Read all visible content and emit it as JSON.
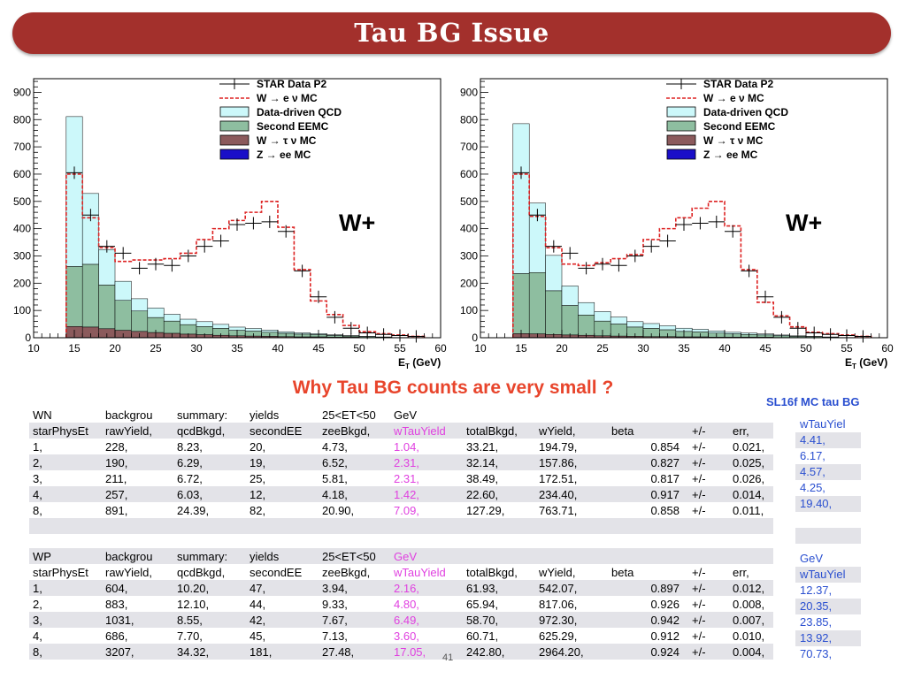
{
  "slide": {
    "title": "Tau BG Issue",
    "question": "Why Tau BG counts are very small ?",
    "page_number": "41"
  },
  "side": {
    "title": "SL16f MC tau BG"
  },
  "chart_data": [
    {
      "type": "bar",
      "title": "",
      "xlabel": "E",
      "xlabel_sub": "T",
      "xlabel_unit": " (GeV)",
      "annotation": "W+",
      "xlim": [
        10,
        60
      ],
      "ylim": [
        0,
        950
      ],
      "xticks": [
        "10",
        "15",
        "20",
        "25",
        "30",
        "35",
        "40",
        "45",
        "50",
        "55",
        "60"
      ],
      "yticks": [
        "0",
        "100",
        "200",
        "300",
        "400",
        "500",
        "600",
        "700",
        "800",
        "900"
      ],
      "bin_edges": [
        14,
        16,
        18,
        20,
        22,
        24,
        26,
        28,
        30,
        32,
        34,
        36,
        38,
        40,
        42,
        44,
        46,
        48,
        50,
        52,
        54,
        56,
        58
      ],
      "legend": [
        "STAR Data P2",
        "W → e ν MC",
        "Data-driven QCD",
        "Second EEMC",
        "W → τ ν MC",
        "Z → ee MC"
      ],
      "legend_position": "top-right",
      "data": [
        605,
        450,
        335,
        310,
        255,
        270,
        265,
        300,
        335,
        355,
        415,
        420,
        425,
        390,
        245,
        150,
        75,
        35,
        18,
        12,
        8,
        5
      ],
      "mc_total": [
        600,
        440,
        330,
        280,
        285,
        285,
        290,
        310,
        360,
        400,
        430,
        460,
        500,
        405,
        250,
        135,
        85,
        45,
        22,
        15,
        10,
        5
      ],
      "qcd": [
        550,
        260,
        130,
        70,
        45,
        35,
        25,
        20,
        18,
        15,
        12,
        10,
        8,
        6,
        5,
        4,
        3,
        2,
        1,
        1,
        0,
        0
      ],
      "eemc": [
        220,
        230,
        160,
        110,
        75,
        55,
        45,
        35,
        30,
        25,
        20,
        18,
        15,
        12,
        10,
        8,
        6,
        4,
        3,
        2,
        1,
        1
      ],
      "wtau": [
        40,
        38,
        32,
        26,
        22,
        18,
        15,
        12,
        10,
        8,
        6,
        5,
        4,
        3,
        2,
        2,
        1,
        1,
        0,
        0,
        0,
        0
      ],
      "zee": [
        1,
        1,
        1,
        1,
        1,
        1,
        1,
        1,
        1,
        1,
        1,
        1,
        1,
        1,
        1,
        1,
        1,
        1,
        1,
        0,
        0,
        0
      ]
    },
    {
      "type": "bar",
      "title": "",
      "xlabel": "E",
      "xlabel_sub": "T",
      "xlabel_unit": " (GeV)",
      "annotation": "W+",
      "xlim": [
        10,
        60
      ],
      "ylim": [
        0,
        950
      ],
      "xticks": [
        "10",
        "15",
        "20",
        "25",
        "30",
        "35",
        "40",
        "45",
        "50",
        "55",
        "60"
      ],
      "yticks": [
        "0",
        "100",
        "200",
        "300",
        "400",
        "500",
        "600",
        "700",
        "800",
        "900"
      ],
      "bin_edges": [
        14,
        16,
        18,
        20,
        22,
        24,
        26,
        28,
        30,
        32,
        34,
        36,
        38,
        40,
        42,
        44,
        46,
        48,
        50,
        52,
        54,
        56,
        58
      ],
      "legend": [
        "STAR Data P2",
        "W → e ν MC",
        "Data-driven QCD",
        "Second EEMC",
        "W → τ ν MC",
        "Z → ee MC"
      ],
      "legend_position": "top-right",
      "data": [
        605,
        450,
        335,
        310,
        255,
        270,
        265,
        300,
        335,
        355,
        415,
        420,
        425,
        390,
        245,
        150,
        75,
        35,
        18,
        12,
        8,
        5
      ],
      "mc_total": [
        600,
        445,
        330,
        270,
        265,
        275,
        290,
        305,
        360,
        400,
        440,
        475,
        500,
        410,
        250,
        130,
        80,
        40,
        20,
        15,
        10,
        5
      ],
      "qcd": [
        550,
        255,
        130,
        72,
        46,
        35,
        26,
        20,
        18,
        15,
        12,
        10,
        8,
        6,
        5,
        4,
        3,
        2,
        1,
        1,
        0,
        0
      ],
      "eemc": [
        220,
        225,
        160,
        108,
        74,
        54,
        44,
        34,
        30,
        25,
        20,
        18,
        15,
        12,
        10,
        8,
        6,
        4,
        3,
        2,
        1,
        1
      ],
      "wtau": [
        14,
        13,
        11,
        9,
        8,
        6,
        5,
        4,
        3,
        3,
        2,
        2,
        1,
        1,
        1,
        1,
        0,
        0,
        0,
        0,
        0,
        0
      ],
      "zee": [
        1,
        1,
        1,
        1,
        1,
        1,
        1,
        1,
        1,
        1,
        1,
        1,
        1,
        1,
        1,
        1,
        1,
        1,
        1,
        0,
        0,
        0
      ]
    }
  ],
  "colors": {
    "qcd": "#ccf8fa",
    "eemc": "#8ebea0",
    "wtau": "#8b5a5c",
    "zee": "#1a0fc8",
    "mc_line": "#dd2222",
    "data": "#000000"
  },
  "wn_table": {
    "rows": [
      {
        "shade": false,
        "cells": [
          "WN",
          "backgrou",
          "summary:",
          "yields",
          "25<ET<50",
          "GeV",
          "",
          "",
          "",
          "",
          ""
        ]
      },
      {
        "shade": true,
        "cells": [
          "starPhysEt",
          "rawYield,",
          "qcdBkgd,",
          "secondEE",
          "zeeBkgd,",
          "wTauYield",
          "totalBkgd,",
          "wYield,",
          "beta",
          "+/-",
          "err,"
        ]
      },
      {
        "shade": false,
        "cells": [
          "1,",
          "228,",
          "8.23,",
          "20,",
          "4.73,",
          "1.04,",
          "33.21,",
          "194.79,",
          "0.854",
          "+/-",
          "0.021,"
        ]
      },
      {
        "shade": true,
        "cells": [
          "2,",
          "190,",
          "6.29,",
          "19,",
          "6.52,",
          "2.31,",
          "32.14,",
          "157.86,",
          "0.827",
          "+/-",
          "0.025,"
        ]
      },
      {
        "shade": false,
        "cells": [
          "3,",
          "211,",
          "6.72,",
          "25,",
          "5.81,",
          "2.31,",
          "38.49,",
          "172.51,",
          "0.817",
          "+/-",
          "0.026,"
        ]
      },
      {
        "shade": true,
        "cells": [
          "4,",
          "257,",
          "6.03,",
          "12,",
          "4.18,",
          "1.42,",
          "22.60,",
          "234.40,",
          "0.917",
          "+/-",
          "0.014,"
        ]
      },
      {
        "shade": false,
        "cells": [
          "8,",
          "891,",
          "24.39,",
          "82,",
          "20.90,",
          "7.09,",
          "127.29,",
          "763.71,",
          "0.858",
          "+/-",
          "0.011,"
        ]
      },
      {
        "shade": true,
        "cells": [
          "",
          "",
          "",
          "",
          "",
          "",
          "",
          "",
          "",
          "",
          ""
        ]
      }
    ]
  },
  "wp_table": {
    "rows": [
      {
        "shade": true,
        "cells": [
          "WP",
          "backgrou",
          "summary:",
          "yields",
          "25<ET<50",
          "GeV",
          "",
          "",
          "",
          "",
          ""
        ]
      },
      {
        "shade": false,
        "cells": [
          "starPhysEt",
          "rawYield,",
          "qcdBkgd,",
          "secondEE",
          "zeeBkgd,",
          "wTauYield",
          "totalBkgd,",
          "wYield,",
          "beta",
          "+/-",
          "err,"
        ]
      },
      {
        "shade": true,
        "cells": [
          "1,",
          "604,",
          "10.20,",
          "47,",
          "3.94,",
          "2.16,",
          "61.93,",
          "542.07,",
          "0.897",
          "+/-",
          "0.012,"
        ]
      },
      {
        "shade": false,
        "cells": [
          "2,",
          "883,",
          "12.10,",
          "44,",
          "9.33,",
          "4.80,",
          "65.94,",
          "817.06,",
          "0.926",
          "+/-",
          "0.008,"
        ]
      },
      {
        "shade": true,
        "cells": [
          "3,",
          "1031,",
          "8.55,",
          "42,",
          "7.67,",
          "6.49,",
          "58.70,",
          "972.30,",
          "0.942",
          "+/-",
          "0.007,"
        ]
      },
      {
        "shade": false,
        "cells": [
          "4,",
          "686,",
          "7.70,",
          "45,",
          "7.13,",
          "3.60,",
          "60.71,",
          "625.29,",
          "0.912",
          "+/-",
          "0.010,"
        ]
      },
      {
        "shade": true,
        "cells": [
          "8,",
          "3207,",
          "34.32,",
          "181,",
          "27.48,",
          "17.05,",
          "242.80,",
          "2964.20,",
          "0.924",
          "+/-",
          "0.004,"
        ]
      }
    ]
  },
  "side_wn": {
    "rows": [
      {
        "shade": false,
        "text": "wTauYiel"
      },
      {
        "shade": true,
        "text": "4.41,"
      },
      {
        "shade": false,
        "text": "6.17,"
      },
      {
        "shade": true,
        "text": "4.57,"
      },
      {
        "shade": false,
        "text": "4.25,"
      },
      {
        "shade": true,
        "text": "19.40,"
      },
      {
        "shade": false,
        "text": ""
      },
      {
        "shade": true,
        "text": ""
      }
    ]
  },
  "side_wp": {
    "rows": [
      {
        "shade": false,
        "text": "GeV"
      },
      {
        "shade": true,
        "text": "wTauYiel"
      },
      {
        "shade": false,
        "text": "12.37,"
      },
      {
        "shade": true,
        "text": "20.35,"
      },
      {
        "shade": false,
        "text": "23.85,"
      },
      {
        "shade": true,
        "text": "13.92,"
      },
      {
        "shade": false,
        "text": "70.73,"
      }
    ]
  }
}
